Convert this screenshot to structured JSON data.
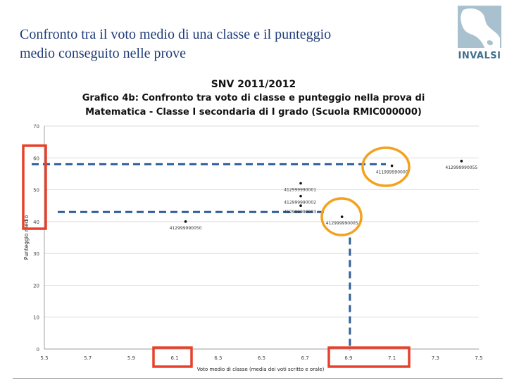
{
  "slide": {
    "title_line1": "Confronto tra il voto medio di una classe e il punteggio",
    "title_line2": "medio conseguito nelle prove",
    "logo_text": "INVALSI",
    "logo_icon": "invalsi-italy-silhouette-icon"
  },
  "chart_data": {
    "type": "scatter",
    "title_lines": [
      "SNV 2011/2012",
      "Grafico 4b: Confronto tra voto di classe e punteggio nella prova di",
      "Matematica - Classe I secondaria di I grado (Scuola RMIC000000)"
    ],
    "xlabel": "Voto medio di classe (media dei voti scritto e orale)",
    "ylabel": "Punteggio medio",
    "xlim": [
      5.5,
      7.5
    ],
    "ylim": [
      0,
      70
    ],
    "x_ticks": [
      "5.5",
      "5.7",
      "5.9",
      "6.1",
      "6.3",
      "6.5",
      "6.7",
      "6.9",
      "7.1",
      "7.3",
      "7.5"
    ],
    "y_ticks": [
      "0",
      "10",
      "20",
      "30",
      "40",
      "50",
      "60",
      "70"
    ],
    "grid": "horizontal",
    "points": [
      {
        "x": 6.15,
        "y": 40,
        "label": "412999990050"
      },
      {
        "x": 6.68,
        "y": 52,
        "label": "412999990001"
      },
      {
        "x": 6.68,
        "y": 48,
        "label": "412999990002"
      },
      {
        "x": 6.68,
        "y": 45,
        "label": "412999990003"
      },
      {
        "x": 6.87,
        "y": 41.5,
        "label": "412999990005"
      },
      {
        "x": 7.1,
        "y": 57.5,
        "label": "411999990000"
      },
      {
        "x": 7.42,
        "y": 59,
        "label": "412999990055"
      }
    ],
    "annotations": {
      "highlight_color": "#e8402a",
      "circle_color": "#f4a21e",
      "dash_color": "#2f5f9a",
      "dashed_h_lines_y": [
        58,
        43
      ],
      "dashed_v_line_x": 6.9
    }
  }
}
